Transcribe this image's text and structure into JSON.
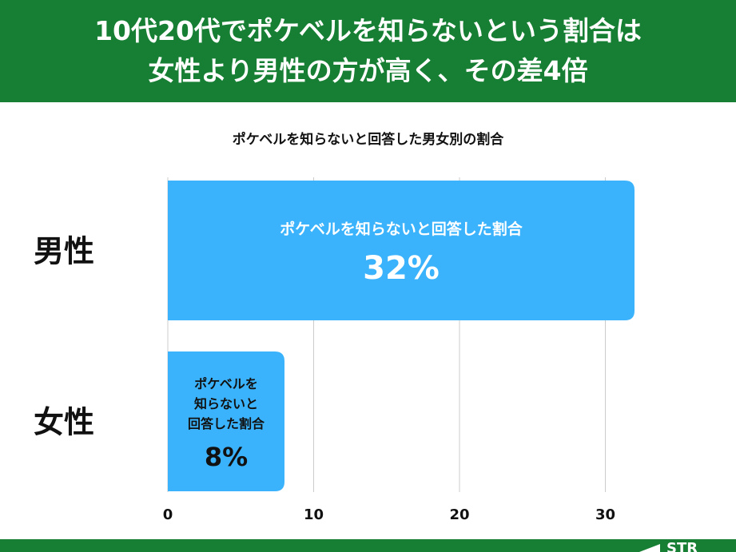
{
  "header": {
    "line1": "10代20代でポケベルを知らないという割合は",
    "line2": "女性より男性の方が高く、その差4倍"
  },
  "brand": "STR",
  "chart_data": {
    "type": "bar",
    "orientation": "horizontal",
    "title": "ポケベルを知らないと回答した男女別の割合",
    "categories": [
      "男性",
      "女性"
    ],
    "values": [
      32,
      8
    ],
    "bar_labels": [
      {
        "lines": [
          "ポケベルを知らないと回答した割合"
        ],
        "value": "32%"
      },
      {
        "lines": [
          "ポケベルを",
          "知らないと",
          "回答した割合"
        ],
        "value": "8%"
      }
    ],
    "xlim": [
      0,
      35
    ],
    "xticks": [
      0,
      10,
      20,
      30
    ],
    "grid": true,
    "colors": {
      "bar": "#3ab3fc",
      "header": "#167f33",
      "gridline": "#cccccc"
    }
  }
}
